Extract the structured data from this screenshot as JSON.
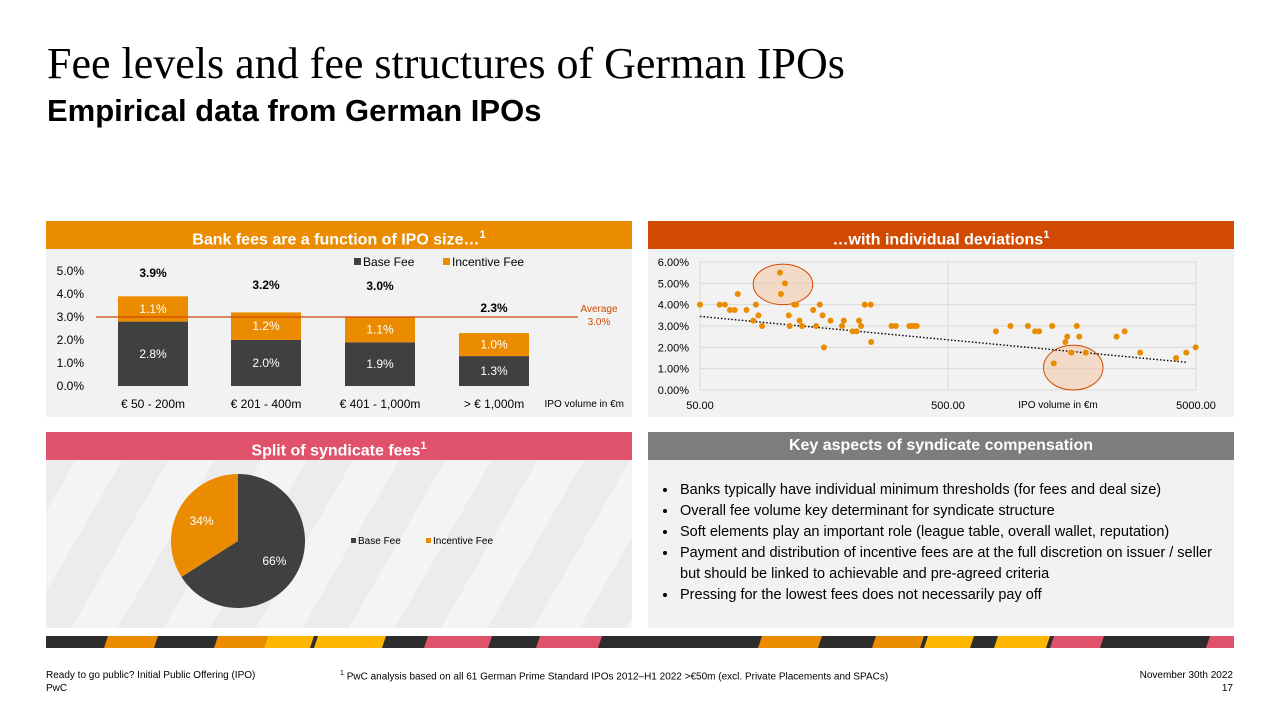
{
  "slide": {
    "title": "Fee levels and fee structures of German IPOs",
    "subtitle": "Empirical data from German IPOs"
  },
  "panels": {
    "bank_fees": {
      "title": "Bank fees are a function of IPO size…",
      "sup": "1"
    },
    "deviations": {
      "title": "…with individual deviations",
      "sup": "1"
    },
    "split": {
      "title": "Split of syndicate fees",
      "sup": "1"
    },
    "key_aspects": {
      "title": "Key aspects of syndicate compensation",
      "bullets": [
        "Banks typically have individual minimum thresholds (for fees and deal size)",
        "Overall fee volume key determinant for syndicate structure",
        "Soft elements play an important role (league table, overall wallet, reputation)",
        "Payment and distribution of incentive fees are at the full discretion on issuer / seller but should be linked to achievable and pre-agreed criteria",
        "Pressing for the lowest fees does not necessarily pay off"
      ]
    }
  },
  "colors": {
    "base_fee": "#404041",
    "incentive_fee": "#eb8c00",
    "average_line": "#d04a02",
    "dot": "#eb8c00",
    "highlight_fill": "#f3c9a8",
    "highlight_stroke": "#d04a02"
  },
  "chart_data": [
    {
      "type": "bar",
      "stacked": true,
      "categories": [
        "€ 50 - 200m",
        "€ 201 - 400m",
        "€ 401 - 1,000m",
        "> € 1,000m"
      ],
      "series": [
        {
          "name": "Base Fee",
          "values": [
            2.8,
            2.0,
            1.9,
            1.3
          ],
          "labels": [
            "2.8%",
            "2.0%",
            "1.9%",
            "1.3%"
          ]
        },
        {
          "name": "Incentive Fee",
          "values": [
            1.1,
            1.2,
            1.1,
            1.0
          ],
          "labels": [
            "1.1%",
            "1.2%",
            "1.1%",
            "1.0%"
          ]
        }
      ],
      "totals": [
        "3.9%",
        "3.2%",
        "3.0%",
        "2.3%"
      ],
      "average": {
        "value": 3.0,
        "label_line1": "Average",
        "label_line2": "3.0%"
      },
      "yticks": [
        "0.0%",
        "1.0%",
        "2.0%",
        "3.0%",
        "4.0%",
        "5.0%"
      ],
      "ylim": [
        0,
        5
      ],
      "xlabel": "IPO volume in €m",
      "legend": "top"
    },
    {
      "type": "scatter",
      "x_scale": "log",
      "xlim": [
        50,
        5000
      ],
      "ylim": [
        0,
        6
      ],
      "xticks": [
        "50.00",
        "500.00",
        "5000.00"
      ],
      "yticks": [
        "0.00%",
        "1.00%",
        "2.00%",
        "3.00%",
        "4.00%",
        "5.00%",
        "6.00%"
      ],
      "xlabel": "IPO volume in €m",
      "points": [
        [
          50,
          4.0
        ],
        [
          60,
          4.0
        ],
        [
          63,
          4.0
        ],
        [
          66,
          3.75
        ],
        [
          69,
          3.75
        ],
        [
          71,
          4.5
        ],
        [
          77,
          3.75
        ],
        [
          82,
          3.25
        ],
        [
          84,
          4.0
        ],
        [
          86,
          3.5
        ],
        [
          89,
          3.0
        ],
        [
          105,
          5.5
        ],
        [
          106,
          4.5
        ],
        [
          110,
          5.0
        ],
        [
          114,
          3.5
        ],
        [
          115,
          3.0
        ],
        [
          120,
          4.0
        ],
        [
          122,
          4.0
        ],
        [
          126,
          3.25
        ],
        [
          129,
          3.0
        ],
        [
          143,
          3.75
        ],
        [
          147,
          3.0
        ],
        [
          152,
          4.0
        ],
        [
          156,
          3.5
        ],
        [
          158,
          2.0
        ],
        [
          168,
          3.25
        ],
        [
          187,
          3.0
        ],
        [
          190,
          3.25
        ],
        [
          206,
          2.75
        ],
        [
          214,
          2.75
        ],
        [
          219,
          3.25
        ],
        [
          223,
          3.0
        ],
        [
          231,
          4.0
        ],
        [
          244,
          4.0
        ],
        [
          245,
          2.25
        ],
        [
          296,
          3.0
        ],
        [
          308,
          3.0
        ],
        [
          349,
          3.0
        ],
        [
          356,
          3.0
        ],
        [
          365,
          3.0
        ],
        [
          374,
          3.0
        ],
        [
          780,
          2.75
        ],
        [
          893,
          3.0
        ],
        [
          1050,
          3.0
        ],
        [
          1122,
          2.75
        ],
        [
          1166,
          2.75
        ],
        [
          1316,
          3.0
        ],
        [
          1335,
          1.25
        ],
        [
          1487,
          2.25
        ],
        [
          1513,
          2.5
        ],
        [
          1570,
          1.75
        ],
        [
          1653,
          3.0
        ],
        [
          1691,
          2.5
        ],
        [
          1796,
          1.75
        ],
        [
          2391,
          2.5
        ],
        [
          2577,
          2.75
        ],
        [
          2976,
          1.75
        ],
        [
          4155,
          1.5
        ],
        [
          4568,
          1.75
        ],
        [
          4986,
          2.0
        ]
      ],
      "trendline": {
        "style": "dotted",
        "from": [
          50,
          3.45
        ],
        "to": [
          5000,
          1.3
        ]
      },
      "highlights": [
        {
          "cx": 108,
          "cy": 4.95,
          "rx_decades": 0.12,
          "ry": 0.95
        },
        {
          "cx": 1600,
          "cy": 1.05,
          "rx_decades": 0.12,
          "ry": 1.05
        }
      ]
    },
    {
      "type": "pie",
      "slices": [
        {
          "name": "Base Fee",
          "value": 66,
          "label": "66%"
        },
        {
          "name": "Incentive Fee",
          "value": 34,
          "label": "34%"
        }
      ],
      "legend": "right"
    }
  ],
  "footer": {
    "left_line1": "Ready to go public? Initial Public Offering (IPO)",
    "left_line2": "PwC",
    "footnote_sup": "1",
    "footnote": "PwC analysis based on all 61 German Prime Standard IPOs 2012–H1 2022 >€50m (excl. Private Placements and SPACs)",
    "date": "November 30th 2022",
    "page": "17"
  }
}
